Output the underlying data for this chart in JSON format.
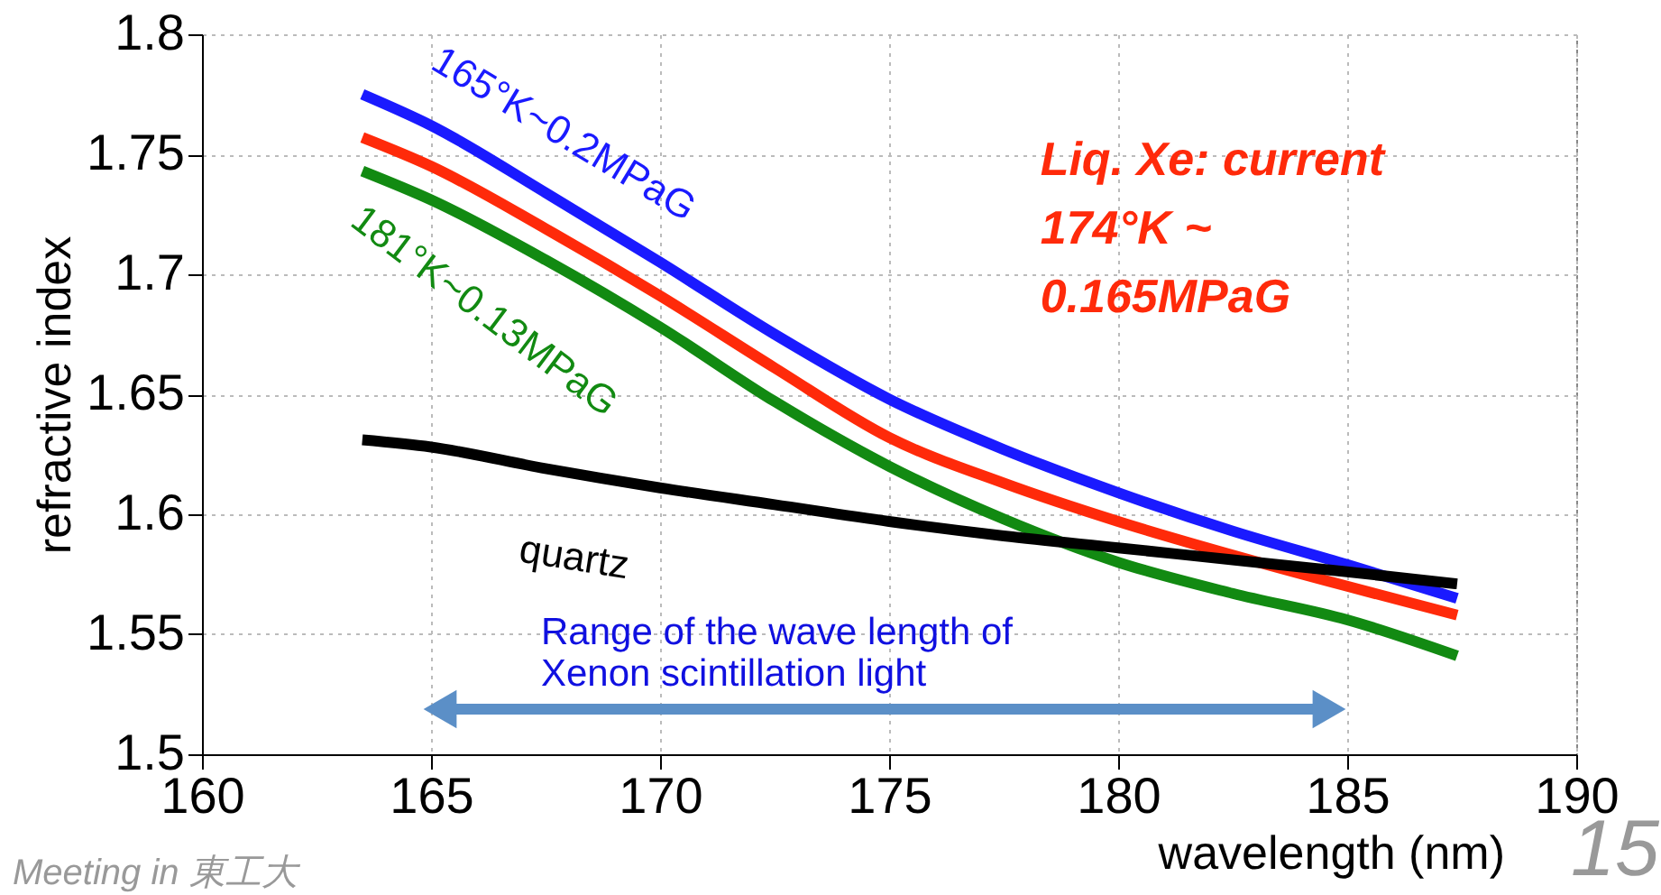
{
  "chart_data": {
    "type": "line",
    "xlabel": "wavelength (nm)",
    "ylabel": "refractive index",
    "x": [
      163.5,
      165,
      167.5,
      170,
      172.5,
      175,
      177.5,
      180,
      182.5,
      185,
      187.4
    ],
    "series": [
      {
        "name": "165°K~0.2MPaG",
        "color": "#1a1aff",
        "values": [
          1.775,
          1.762,
          1.734,
          1.705,
          1.675,
          1.648,
          1.627,
          1.609,
          1.593,
          1.579,
          1.565
        ]
      },
      {
        "name": "Liq. Xe: current\n174°K ~\n0.165MPaG",
        "color": "#ff2a0a",
        "values": [
          1.757,
          1.745,
          1.719,
          1.691,
          1.661,
          1.632,
          1.613,
          1.597,
          1.583,
          1.57,
          1.558
        ]
      },
      {
        "name": "181°K~0.13MPaG",
        "color": "#128a12",
        "values": [
          1.743,
          1.731,
          1.706,
          1.678,
          1.647,
          1.62,
          1.598,
          1.58,
          1.567,
          1.556,
          1.541
        ]
      },
      {
        "name": "quartz",
        "color": "#000000",
        "values": [
          1.631,
          1.628,
          1.619,
          1.611,
          1.604,
          1.597,
          1.591,
          1.586,
          1.581,
          1.576,
          1.571
        ]
      }
    ],
    "xlim": [
      160,
      190
    ],
    "xticks": [
      160,
      165,
      170,
      175,
      180,
      185,
      190
    ],
    "ylim": [
      1.5,
      1.8
    ],
    "yticks": [
      1.5,
      1.55,
      1.6,
      1.65,
      1.7,
      1.75,
      1.8
    ],
    "grid": true,
    "marker": "none",
    "line_style": "solid",
    "annotations": [
      "Range of the wave length of\nXenon scintillation light",
      "Meeting in 東工大",
      "15"
    ]
  }
}
